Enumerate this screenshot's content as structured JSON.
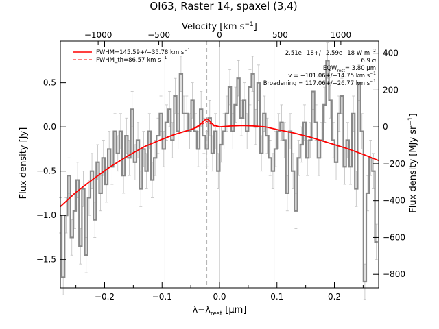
{
  "chart_data": {
    "type": "line",
    "title": "OI63, Raster 14, spaxel (3,4)",
    "xlabel": "λ−λ",
    "xlabel_sub": "rest",
    "xlabel_unit": "[μm]",
    "ylabel": "Flux density [Jy]",
    "top_axis_label": "Velocity [km s",
    "top_axis_exp": "−1",
    "top_axis_close": "]",
    "right_axis_label": "Flux density [MJy sr",
    "right_axis_exp": "−1",
    "right_axis_close": "]",
    "xlim": [
      -0.277,
      0.277
    ],
    "ylim": [
      -1.82,
      0.97
    ],
    "x_ticks": [
      -0.2,
      -0.1,
      0.0,
      0.1,
      0.2
    ],
    "x_tick_labels": [
      "−0.2",
      "−0.1",
      "0.0",
      "0.1",
      "0.2"
    ],
    "y_ticks": [
      -1.5,
      -1.0,
      -0.5,
      0.0,
      0.5
    ],
    "y_tick_labels": [
      "−1.5",
      "−1.0",
      "−0.5",
      "0.0",
      "0.5"
    ],
    "top_ticks_velocity": [
      -1000,
      -500,
      0,
      500,
      1000
    ],
    "top_tick_labels": [
      "−1000",
      "−500",
      "0",
      "500",
      "1000"
    ],
    "right_ticks": [
      -800,
      -600,
      -400,
      -200,
      0,
      200,
      400
    ],
    "right_tick_labels": [
      "−800",
      "−600",
      "−400",
      "−200",
      "0",
      "200",
      "400"
    ],
    "right_scale": 480,
    "velocity_per_micron": 4735,
    "vertical_lines_x": [
      -0.095,
      0.0,
      0.095
    ],
    "dashed_line_x": -0.022,
    "legend": {
      "entries": [
        {
          "label": "FWHM=145.59+/−35.78 km s",
          "style": "solid",
          "color": "#ff0000"
        },
        {
          "label": "FWHM_th=86.57 km s",
          "style": "dashed",
          "color": "#ff0000"
        }
      ],
      "exp": "−1"
    },
    "annotations": [
      "2.51e−18+/−2.59e−18 W m",
      "6.9 σ",
      "EQW",
      "= 3.80 μm",
      "v = −101.06+/−14.75 km s",
      "Broadening = 117.06+/−26.77 km s"
    ],
    "annotation_sub": "rest",
    "annotation_exp_m2": "−2",
    "annotation_exp_s1": "−1",
    "colors": {
      "data": "#888888",
      "error": "#c0c0c0",
      "fit": "#ff0000",
      "guide": "#b0b0b0"
    },
    "series": [
      {
        "name": "data",
        "type": "step",
        "x": [
          -0.277,
          -0.272,
          -0.267,
          -0.262,
          -0.257,
          -0.252,
          -0.247,
          -0.242,
          -0.237,
          -0.232,
          -0.227,
          -0.222,
          -0.217,
          -0.212,
          -0.207,
          -0.202,
          -0.197,
          -0.192,
          -0.187,
          -0.182,
          -0.177,
          -0.172,
          -0.167,
          -0.162,
          -0.157,
          -0.152,
          -0.147,
          -0.142,
          -0.137,
          -0.132,
          -0.127,
          -0.122,
          -0.117,
          -0.112,
          -0.107,
          -0.102,
          -0.097,
          -0.092,
          -0.087,
          -0.082,
          -0.077,
          -0.072,
          -0.067,
          -0.062,
          -0.057,
          -0.052,
          -0.047,
          -0.042,
          -0.037,
          -0.032,
          -0.027,
          -0.022,
          -0.017,
          -0.012,
          -0.007,
          -0.002,
          0.003,
          0.008,
          0.013,
          0.018,
          0.023,
          0.028,
          0.033,
          0.038,
          0.043,
          0.048,
          0.053,
          0.058,
          0.063,
          0.068,
          0.073,
          0.078,
          0.083,
          0.088,
          0.093,
          0.098,
          0.103,
          0.108,
          0.113,
          0.118,
          0.123,
          0.128,
          0.133,
          0.138,
          0.143,
          0.148,
          0.153,
          0.158,
          0.163,
          0.168,
          0.173,
          0.178,
          0.183,
          0.188,
          0.193,
          0.198,
          0.203,
          0.208,
          0.213,
          0.218,
          0.223,
          0.228,
          0.233,
          0.238,
          0.243,
          0.248,
          0.253,
          0.258,
          0.263,
          0.268,
          0.273
        ],
        "y": [
          -1.0,
          -1.7,
          -1.0,
          -0.55,
          -1.25,
          -0.95,
          -0.6,
          -1.35,
          -0.7,
          -1.45,
          -0.8,
          -0.5,
          -1.05,
          -0.4,
          -0.75,
          -0.35,
          -0.65,
          -0.25,
          -0.45,
          -0.05,
          -0.3,
          -0.05,
          -0.55,
          -0.1,
          -0.35,
          0.2,
          -0.4,
          -0.15,
          -0.7,
          -0.25,
          -0.5,
          -0.05,
          -0.6,
          -0.35,
          -0.1,
          0.15,
          -0.25,
          0.05,
          0.2,
          -0.15,
          0.35,
          -0.05,
          0.6,
          0.15,
          0.15,
          -0.05,
          0.3,
          -0.05,
          -0.25,
          0.2,
          -0.1,
          -0.25,
          0.1,
          -0.3,
          -0.05,
          -0.5,
          -0.2,
          -0.05,
          0.15,
          0.45,
          -0.05,
          0.25,
          0.55,
          0.1,
          0.3,
          -0.05,
          0.45,
          0.6,
          0.0,
          0.5,
          -0.3,
          0.15,
          -0.1,
          -0.35,
          -0.5,
          -0.25,
          -0.05,
          0.05,
          -0.15,
          -0.75,
          -0.05,
          -0.5,
          -0.95,
          -0.35,
          -0.2,
          0.05,
          -0.35,
          -0.15,
          0.4,
          0.05,
          -0.35,
          -0.15,
          0.25,
          0.75,
          0.3,
          -0.15,
          -0.4,
          0.15,
          0.35,
          -0.45,
          -0.15,
          -0.45,
          0.15,
          -0.7,
          0.5,
          -0.05,
          -1.75,
          -0.75,
          -0.35,
          -0.5,
          -1.3
        ],
        "err": 0.2
      },
      {
        "name": "fit",
        "x": [
          -0.277,
          -0.25,
          -0.22,
          -0.19,
          -0.16,
          -0.13,
          -0.1,
          -0.08,
          -0.06,
          -0.05,
          -0.045,
          -0.04,
          -0.035,
          -0.03,
          -0.025,
          -0.022,
          -0.019,
          -0.015,
          -0.01,
          -0.005,
          0.0,
          0.02,
          0.04,
          0.06,
          0.08,
          0.1,
          0.13,
          0.16,
          0.19,
          0.22,
          0.25,
          0.277
        ],
        "y": [
          -0.9,
          -0.74,
          -0.59,
          -0.45,
          -0.33,
          -0.22,
          -0.14,
          -0.09,
          -0.05,
          -0.03,
          -0.02,
          0.0,
          0.02,
          0.05,
          0.08,
          0.09,
          0.08,
          0.05,
          0.02,
          0.01,
          0.0,
          0.01,
          0.015,
          0.01,
          0.0,
          -0.03,
          -0.07,
          -0.12,
          -0.18,
          -0.24,
          -0.31,
          -0.38
        ]
      },
      {
        "name": "fit_thermal",
        "x": [
          -0.05,
          -0.045,
          -0.04,
          -0.035,
          -0.03,
          -0.025,
          -0.022,
          -0.019,
          -0.015,
          -0.01,
          -0.005,
          0.0
        ],
        "y": [
          -0.03,
          -0.02,
          -0.01,
          0.01,
          0.03,
          0.05,
          0.06,
          0.05,
          0.03,
          0.01,
          0.005,
          0.0
        ]
      }
    ]
  }
}
